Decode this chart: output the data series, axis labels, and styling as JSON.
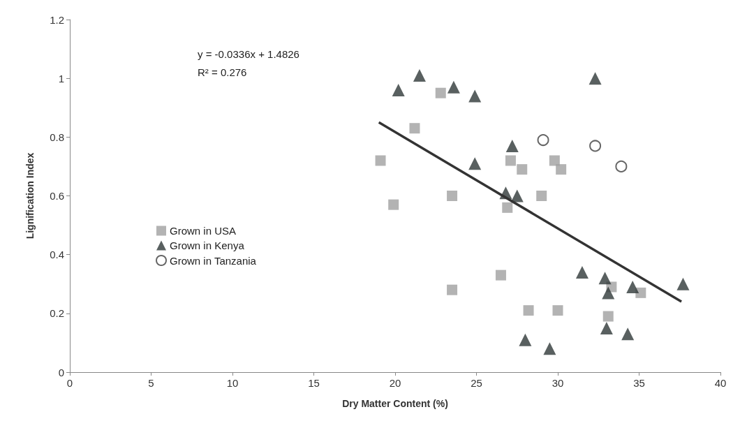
{
  "chart_data": {
    "type": "scatter",
    "xlabel": "Dry Matter Content (%)",
    "ylabel": "Lignification Index",
    "xlim": [
      0,
      40
    ],
    "xticks": [
      0,
      5,
      10,
      15,
      20,
      25,
      30,
      35,
      40
    ],
    "ylim": [
      0,
      1.2
    ],
    "yticks": [
      0,
      0.2,
      0.4,
      0.6,
      0.8,
      1,
      1.2
    ],
    "grid": false,
    "legend": "left",
    "annotations": [
      "y = -0.0336x + 1.4826",
      "R² = 0.276"
    ],
    "series": [
      {
        "name": "Grown in USA",
        "color": "#a0a0a0",
        "marker": "square",
        "x": [
          19.1,
          19.9,
          21.2,
          22.8,
          23.5,
          23.5,
          26.5,
          26.9,
          27.1,
          27.8,
          28.2,
          29.0,
          29.8,
          30.0,
          30.2,
          33.1,
          33.3,
          35.1
        ],
        "values": [
          0.72,
          0.57,
          0.83,
          0.95,
          0.6,
          0.28,
          0.33,
          0.56,
          0.72,
          0.69,
          0.21,
          0.6,
          0.72,
          0.21,
          0.69,
          0.19,
          0.29,
          0.27
        ]
      },
      {
        "name": "Grown in Kenya",
        "color": "#2f3838",
        "marker": "triangle",
        "x": [
          20.2,
          21.5,
          23.6,
          24.9,
          24.9,
          26.8,
          27.2,
          27.5,
          28.0,
          29.5,
          31.5,
          32.3,
          32.9,
          33.0,
          33.1,
          34.3,
          34.6,
          37.7
        ],
        "values": [
          0.96,
          1.01,
          0.97,
          0.94,
          0.71,
          0.61,
          0.77,
          0.6,
          0.11,
          0.08,
          0.34,
          1.0,
          0.32,
          0.15,
          0.27,
          0.13,
          0.29,
          0.3
        ]
      },
      {
        "name": "Grown in Tanzania",
        "color": "#404040",
        "marker": "circle",
        "x": [
          29.1,
          32.3,
          33.9
        ],
        "values": [
          0.79,
          0.77,
          0.7
        ]
      },
      {
        "type": "line",
        "color": "#333333",
        "marker": "none",
        "x": [
          19.0,
          37.6
        ],
        "values": [
          0.85,
          0.24
        ]
      }
    ]
  }
}
